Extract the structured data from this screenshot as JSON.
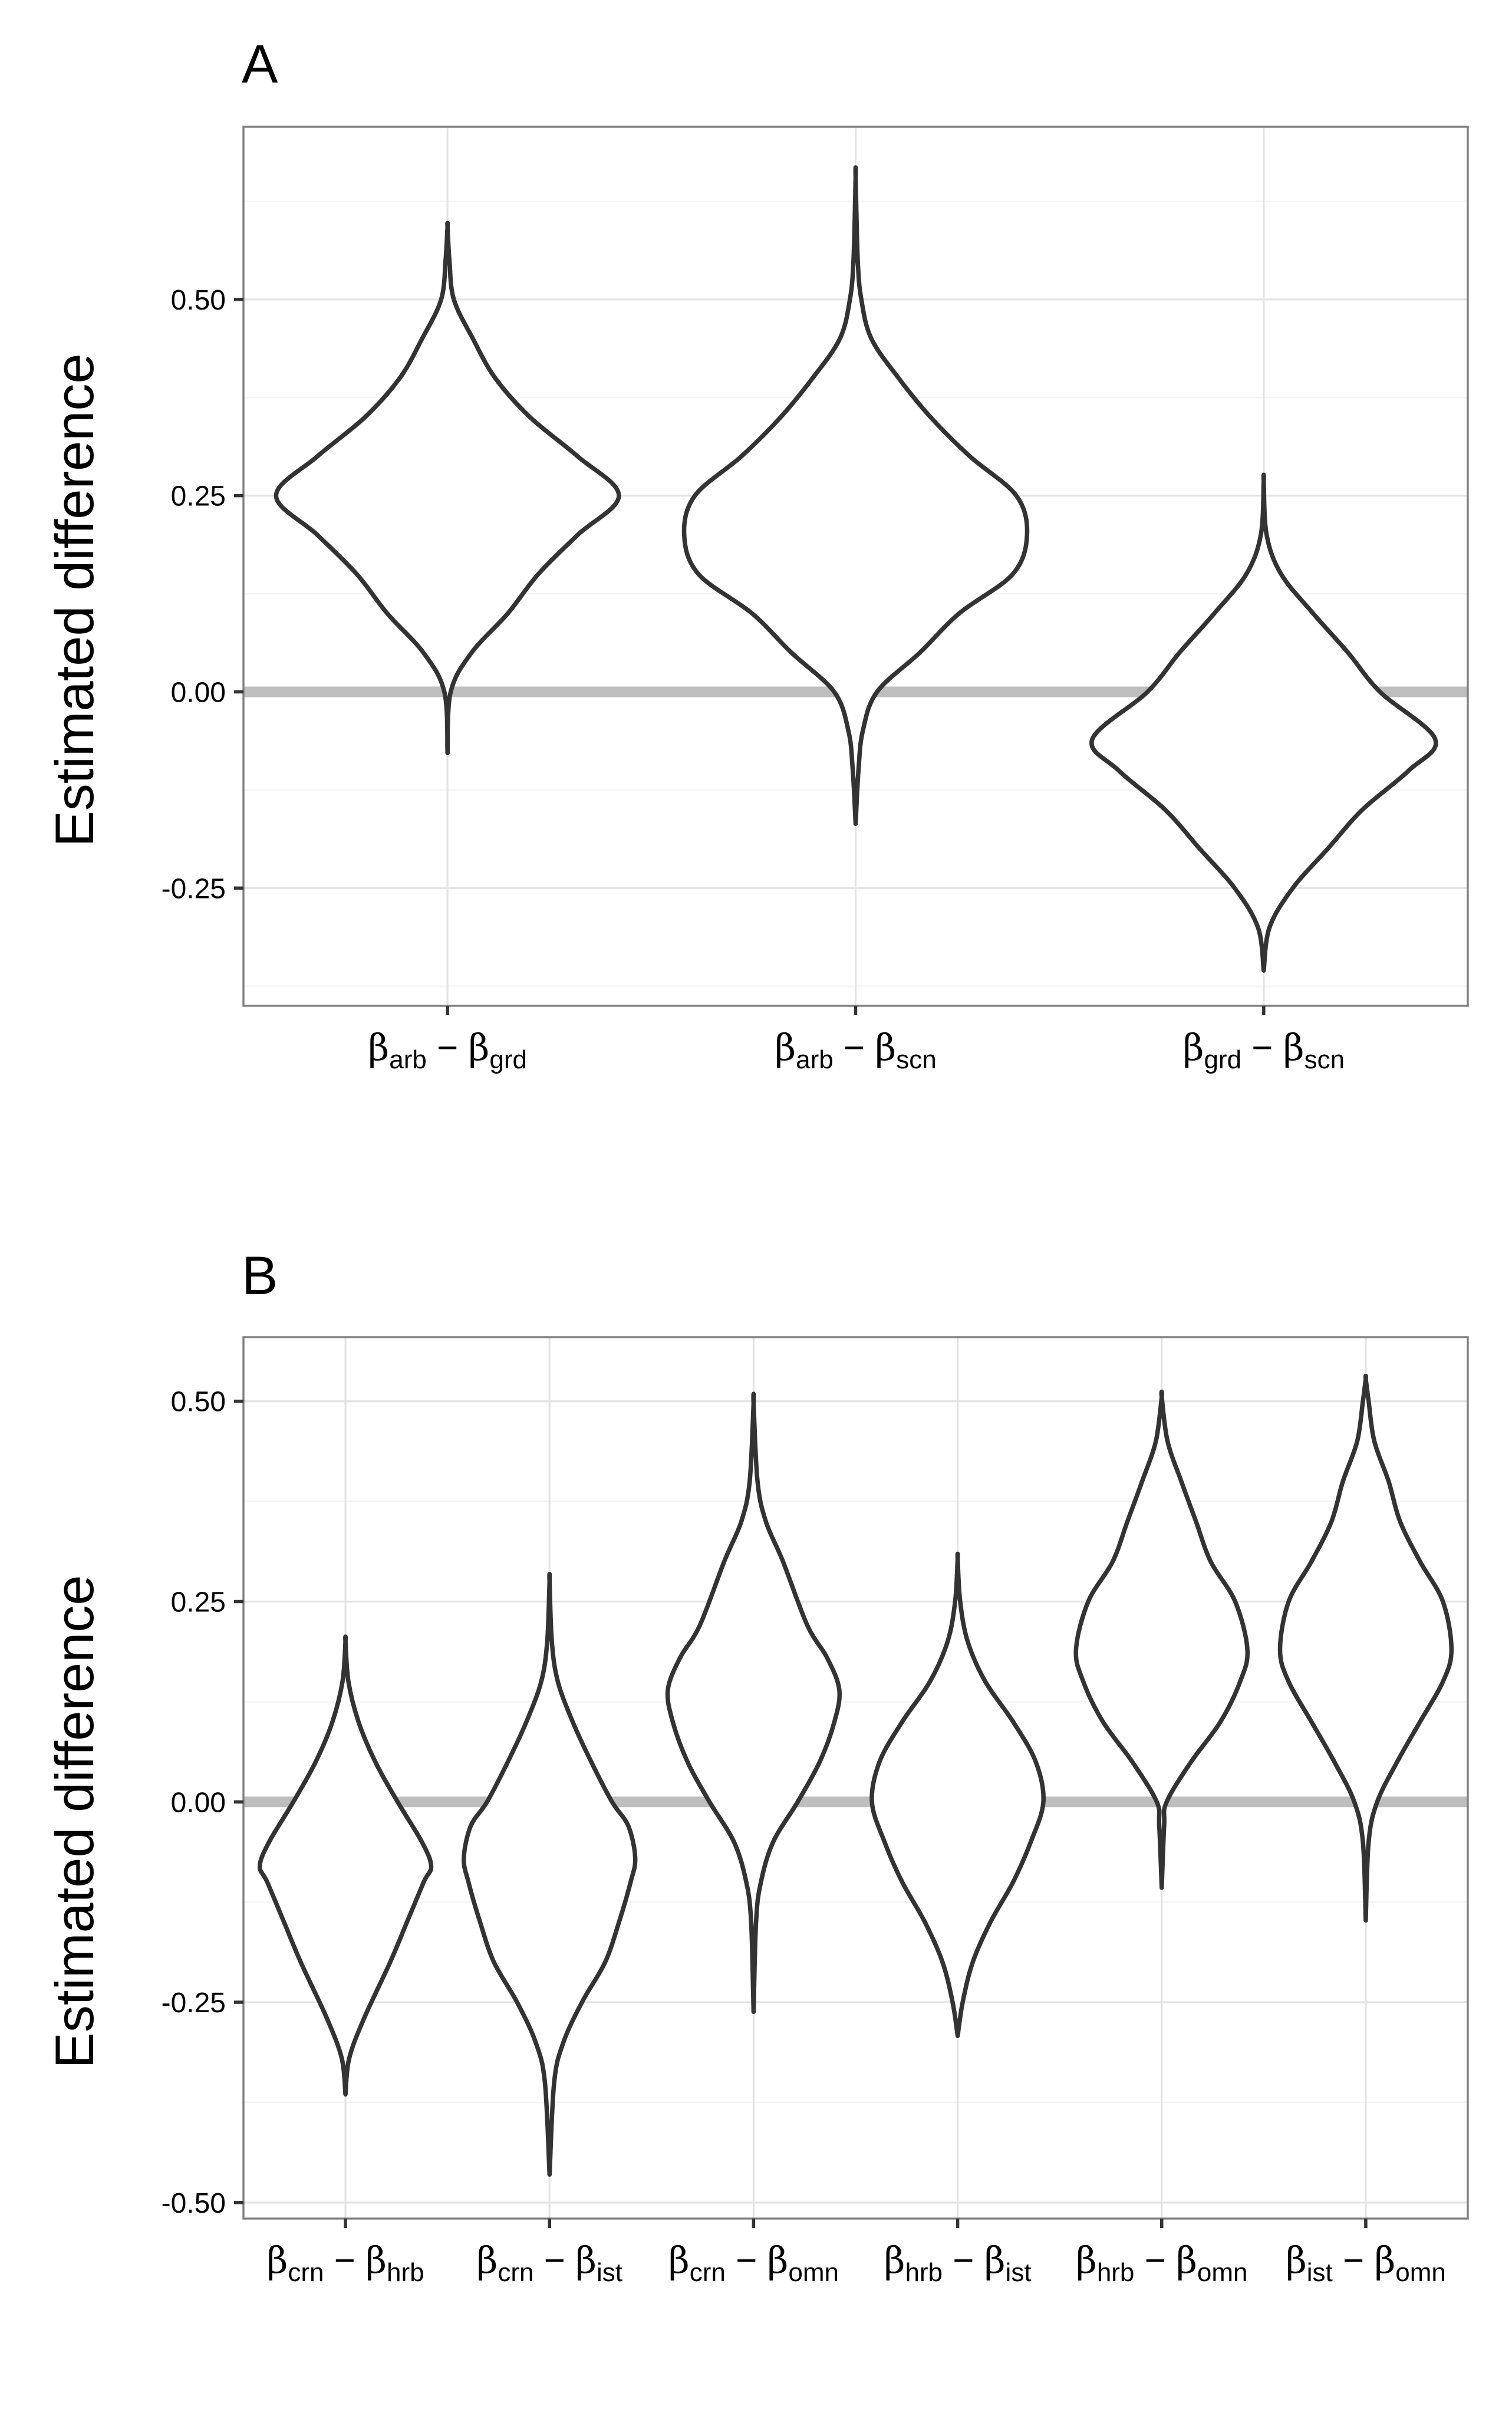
{
  "chart_data": [
    {
      "type": "violin",
      "panel_label": "A",
      "ylabel": "Estimated difference",
      "xlabel": "",
      "ylim": [
        -0.4,
        0.72
      ],
      "y_ticks": [
        -0.25,
        0.0,
        0.25,
        0.5
      ],
      "y_tick_labels": [
        "-0.25",
        "0.00",
        "0.25",
        "0.50"
      ],
      "reference_line_y": 0.0,
      "grid": true,
      "categories": [
        {
          "greek1": "β",
          "sub1": "arb",
          "minus": "−",
          "greek2": "β",
          "sub2": "grd"
        },
        {
          "greek1": "β",
          "sub1": "arb",
          "minus": "−",
          "greek2": "β",
          "sub2": "scn"
        },
        {
          "greek1": "β",
          "sub1": "grd",
          "minus": "−",
          "greek2": "β",
          "sub2": "scn"
        }
      ],
      "violins": [
        {
          "min": -0.078,
          "max": 0.592,
          "profile": [
            [
              -0.078,
              0.0
            ],
            [
              0.0,
              0.005
            ],
            [
              0.05,
              0.038
            ],
            [
              0.1,
              0.095
            ],
            [
              0.15,
              0.143
            ],
            [
              0.2,
              0.205
            ],
            [
              0.25,
              0.27
            ],
            [
              0.3,
              0.205
            ],
            [
              0.35,
              0.13
            ],
            [
              0.4,
              0.075
            ],
            [
              0.45,
              0.04
            ],
            [
              0.5,
              0.01
            ],
            [
              0.55,
              0.003
            ],
            [
              0.592,
              0.0
            ]
          ]
        },
        {
          "min": -0.168,
          "max": 0.655,
          "profile": [
            [
              -0.168,
              0.0
            ],
            [
              -0.1,
              0.004
            ],
            [
              -0.05,
              0.01
            ],
            [
              0.0,
              0.03
            ],
            [
              0.05,
              0.09
            ],
            [
              0.1,
              0.145
            ],
            [
              0.15,
              0.22
            ],
            [
              0.2,
              0.24
            ],
            [
              0.25,
              0.225
            ],
            [
              0.3,
              0.16
            ],
            [
              0.35,
              0.105
            ],
            [
              0.4,
              0.06
            ],
            [
              0.45,
              0.022
            ],
            [
              0.5,
              0.008
            ],
            [
              0.55,
              0.003
            ],
            [
              0.655,
              0.0
            ]
          ]
        },
        {
          "min": -0.355,
          "max": 0.268,
          "profile": [
            [
              -0.355,
              0.0
            ],
            [
              -0.3,
              0.01
            ],
            [
              -0.25,
              0.05
            ],
            [
              -0.2,
              0.11
            ],
            [
              -0.15,
              0.17
            ],
            [
              -0.1,
              0.25
            ],
            [
              -0.06,
              0.295
            ],
            [
              0.0,
              0.2
            ],
            [
              0.05,
              0.145
            ],
            [
              0.1,
              0.085
            ],
            [
              0.15,
              0.03
            ],
            [
              0.2,
              0.005
            ],
            [
              0.268,
              0.0
            ]
          ]
        }
      ]
    },
    {
      "type": "violin",
      "panel_label": "B",
      "ylabel": "Estimated difference",
      "xlabel": "",
      "ylim": [
        -0.52,
        0.58
      ],
      "y_ticks": [
        -0.5,
        -0.25,
        0.0,
        0.25,
        0.5
      ],
      "y_tick_labels": [
        "-0.50",
        "-0.25",
        "0.00",
        "0.25",
        "0.50"
      ],
      "reference_line_y": 0.0,
      "grid": true,
      "categories": [
        {
          "greek1": "β",
          "sub1": "crn",
          "minus": "−",
          "greek2": "β",
          "sub2": "hrb"
        },
        {
          "greek1": "β",
          "sub1": "crn",
          "minus": "−",
          "greek2": "β",
          "sub2": "ist"
        },
        {
          "greek1": "β",
          "sub1": "crn",
          "minus": "−",
          "greek2": "β",
          "sub2": "omn"
        },
        {
          "greek1": "β",
          "sub1": "hrb",
          "minus": "−",
          "greek2": "β",
          "sub2": "ist"
        },
        {
          "greek1": "β",
          "sub1": "hrb",
          "minus": "−",
          "greek2": "β",
          "sub2": "omn"
        },
        {
          "greek1": "β",
          "sub1": "ist",
          "minus": "−",
          "greek2": "β",
          "sub2": "omn"
        }
      ],
      "violins": [
        {
          "min": -0.365,
          "max": 0.2,
          "profile": [
            [
              -0.365,
              0.0
            ],
            [
              -0.32,
              0.01
            ],
            [
              -0.27,
              0.05
            ],
            [
              -0.2,
              0.12
            ],
            [
              -0.15,
              0.165
            ],
            [
              -0.1,
              0.21
            ],
            [
              -0.08,
              0.23
            ],
            [
              -0.05,
              0.205
            ],
            [
              0.0,
              0.14
            ],
            [
              0.05,
              0.08
            ],
            [
              0.1,
              0.035
            ],
            [
              0.15,
              0.008
            ],
            [
              0.2,
              0.0
            ]
          ]
        },
        {
          "min": -0.465,
          "max": 0.275,
          "profile": [
            [
              -0.465,
              0.0
            ],
            [
              -0.35,
              0.01
            ],
            [
              -0.3,
              0.03
            ],
            [
              -0.25,
              0.07
            ],
            [
              -0.2,
              0.12
            ],
            [
              -0.15,
              0.15
            ],
            [
              -0.1,
              0.175
            ],
            [
              -0.07,
              0.185
            ],
            [
              -0.03,
              0.17
            ],
            [
              0.0,
              0.135
            ],
            [
              0.05,
              0.09
            ],
            [
              0.1,
              0.05
            ],
            [
              0.15,
              0.018
            ],
            [
              0.2,
              0.005
            ],
            [
              0.275,
              0.0
            ]
          ]
        },
        {
          "min": -0.262,
          "max": 0.497,
          "profile": [
            [
              -0.262,
              0.0
            ],
            [
              -0.15,
              0.005
            ],
            [
              -0.1,
              0.015
            ],
            [
              -0.05,
              0.04
            ],
            [
              0.0,
              0.09
            ],
            [
              0.05,
              0.135
            ],
            [
              0.1,
              0.165
            ],
            [
              0.14,
              0.175
            ],
            [
              0.18,
              0.15
            ],
            [
              0.22,
              0.11
            ],
            [
              0.3,
              0.06
            ],
            [
              0.35,
              0.025
            ],
            [
              0.4,
              0.008
            ],
            [
              0.497,
              0.0
            ]
          ]
        },
        {
          "min": -0.292,
          "max": 0.303,
          "profile": [
            [
              -0.292,
              0.0
            ],
            [
              -0.25,
              0.01
            ],
            [
              -0.2,
              0.03
            ],
            [
              -0.15,
              0.065
            ],
            [
              -0.1,
              0.11
            ],
            [
              -0.05,
              0.145
            ],
            [
              0.0,
              0.17
            ],
            [
              0.05,
              0.155
            ],
            [
              0.1,
              0.11
            ],
            [
              0.15,
              0.055
            ],
            [
              0.2,
              0.02
            ],
            [
              0.25,
              0.005
            ],
            [
              0.303,
              0.0
            ]
          ]
        },
        {
          "min": -0.107,
          "max": 0.505,
          "profile": [
            [
              -0.107,
              0.0
            ],
            [
              -0.03,
              0.005
            ],
            [
              0.0,
              0.01
            ],
            [
              0.05,
              0.06
            ],
            [
              0.1,
              0.12
            ],
            [
              0.15,
              0.16
            ],
            [
              0.19,
              0.175
            ],
            [
              0.25,
              0.15
            ],
            [
              0.3,
              0.1
            ],
            [
              0.35,
              0.07
            ],
            [
              0.4,
              0.04
            ],
            [
              0.45,
              0.012
            ],
            [
              0.505,
              0.0
            ]
          ]
        },
        {
          "min": -0.148,
          "max": 0.528,
          "profile": [
            [
              -0.148,
              0.0
            ],
            [
              -0.05,
              0.005
            ],
            [
              0.0,
              0.02
            ],
            [
              0.05,
              0.055
            ],
            [
              0.1,
              0.095
            ],
            [
              0.15,
              0.135
            ],
            [
              0.19,
              0.15
            ],
            [
              0.25,
              0.135
            ],
            [
              0.3,
              0.095
            ],
            [
              0.35,
              0.06
            ],
            [
              0.4,
              0.04
            ],
            [
              0.45,
              0.015
            ],
            [
              0.5,
              0.005
            ],
            [
              0.528,
              0.0
            ]
          ]
        }
      ]
    }
  ]
}
